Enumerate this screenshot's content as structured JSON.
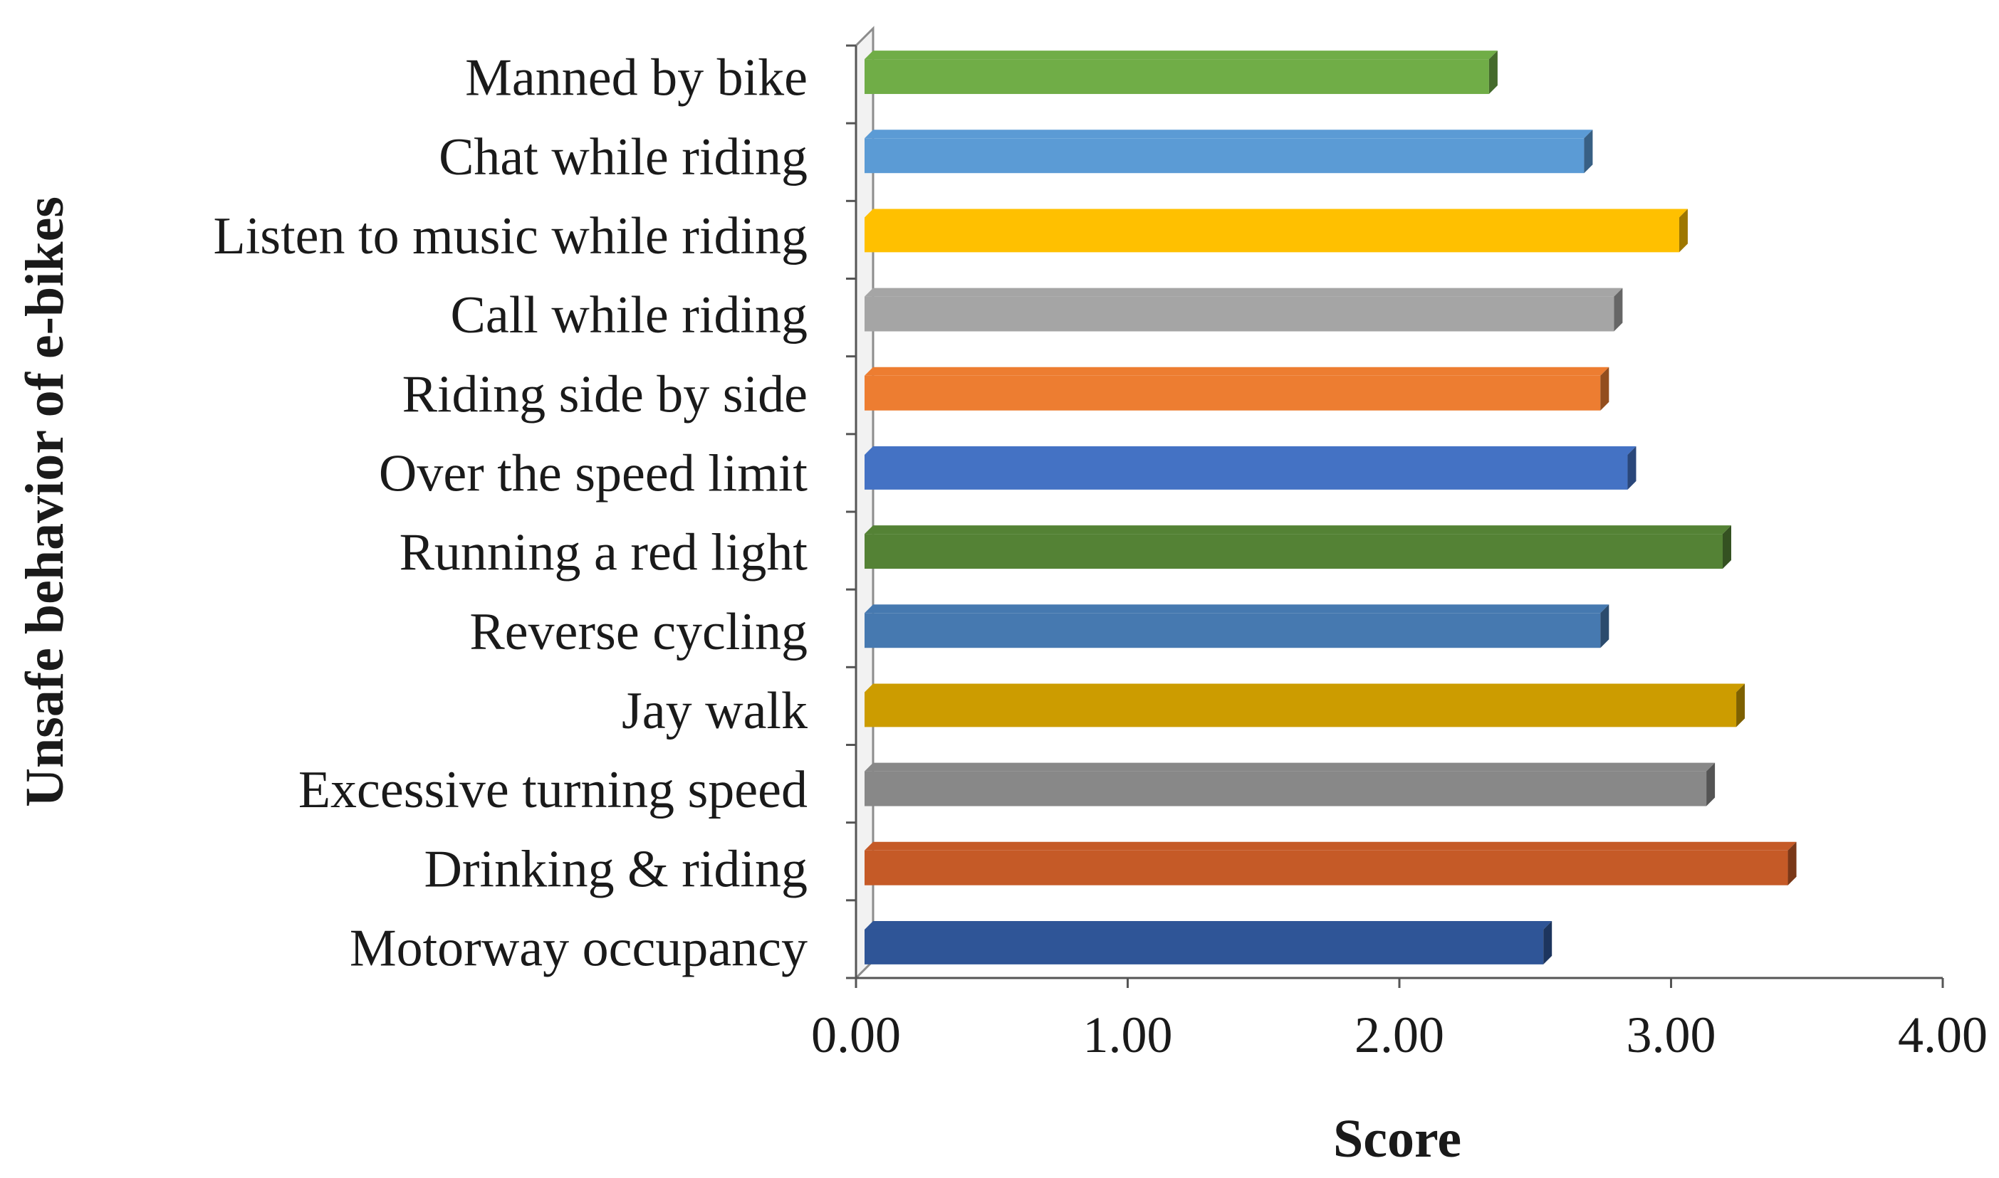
{
  "chart_data": {
    "type": "bar",
    "orientation": "horizontal",
    "style": "3d",
    "title": "",
    "xlabel": "Score",
    "ylabel": "Unsafe behavior of e-bikes",
    "xlim": [
      0,
      4
    ],
    "x_ticks": [
      "0.00",
      "1.00",
      "2.00",
      "3.00",
      "4.00"
    ],
    "grid": false,
    "legend": "none",
    "categories": [
      "Manned by bike",
      "Chat while riding",
      "Listen to music while riding",
      "Call while riding",
      "Riding side by side",
      "Over the speed limit",
      "Running a red light",
      "Reverse cycling",
      "Jay walk",
      "Excessive turning speed",
      "Drinking & riding",
      "Motorway occupancy"
    ],
    "values": [
      2.33,
      2.68,
      3.03,
      2.79,
      2.74,
      2.84,
      3.19,
      2.74,
      3.24,
      3.13,
      3.43,
      2.53
    ],
    "colors": [
      "#70ad47",
      "#5b9bd5",
      "#ffc000",
      "#a5a5a5",
      "#ed7d31",
      "#4472c4",
      "#548235",
      "#4679b0",
      "#cc9c00",
      "#888888",
      "#c55a27",
      "#2f5597"
    ]
  }
}
